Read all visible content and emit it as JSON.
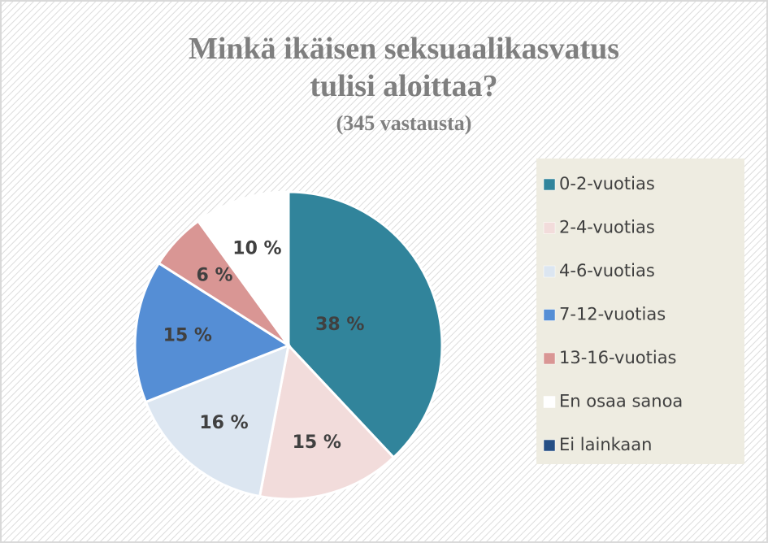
{
  "chart_data": {
    "type": "pie",
    "title": [
      "Minkä ikäisen seksuaalikasvatus",
      "tulisi aloittaa?"
    ],
    "subtitle": "(345 vastausta)",
    "categories": [
      "0-2-vuotias",
      "2-4-vuotias",
      "4-6-vuotias",
      "7-12-vuotias",
      "13-16-vuotias",
      "En osaa sanoa",
      "Ei lainkaan"
    ],
    "values": [
      38,
      15,
      16,
      15,
      6,
      10,
      0
    ],
    "value_labels": [
      "38 %",
      "15 %",
      "16 %",
      "15 %",
      "6 %",
      "10 %",
      null
    ],
    "colors": [
      "#31849b",
      "#f2dcdb",
      "#dce6f1",
      "#558ed5",
      "#d99694",
      "#ffffff",
      "#254f85"
    ],
    "legend": "right"
  }
}
